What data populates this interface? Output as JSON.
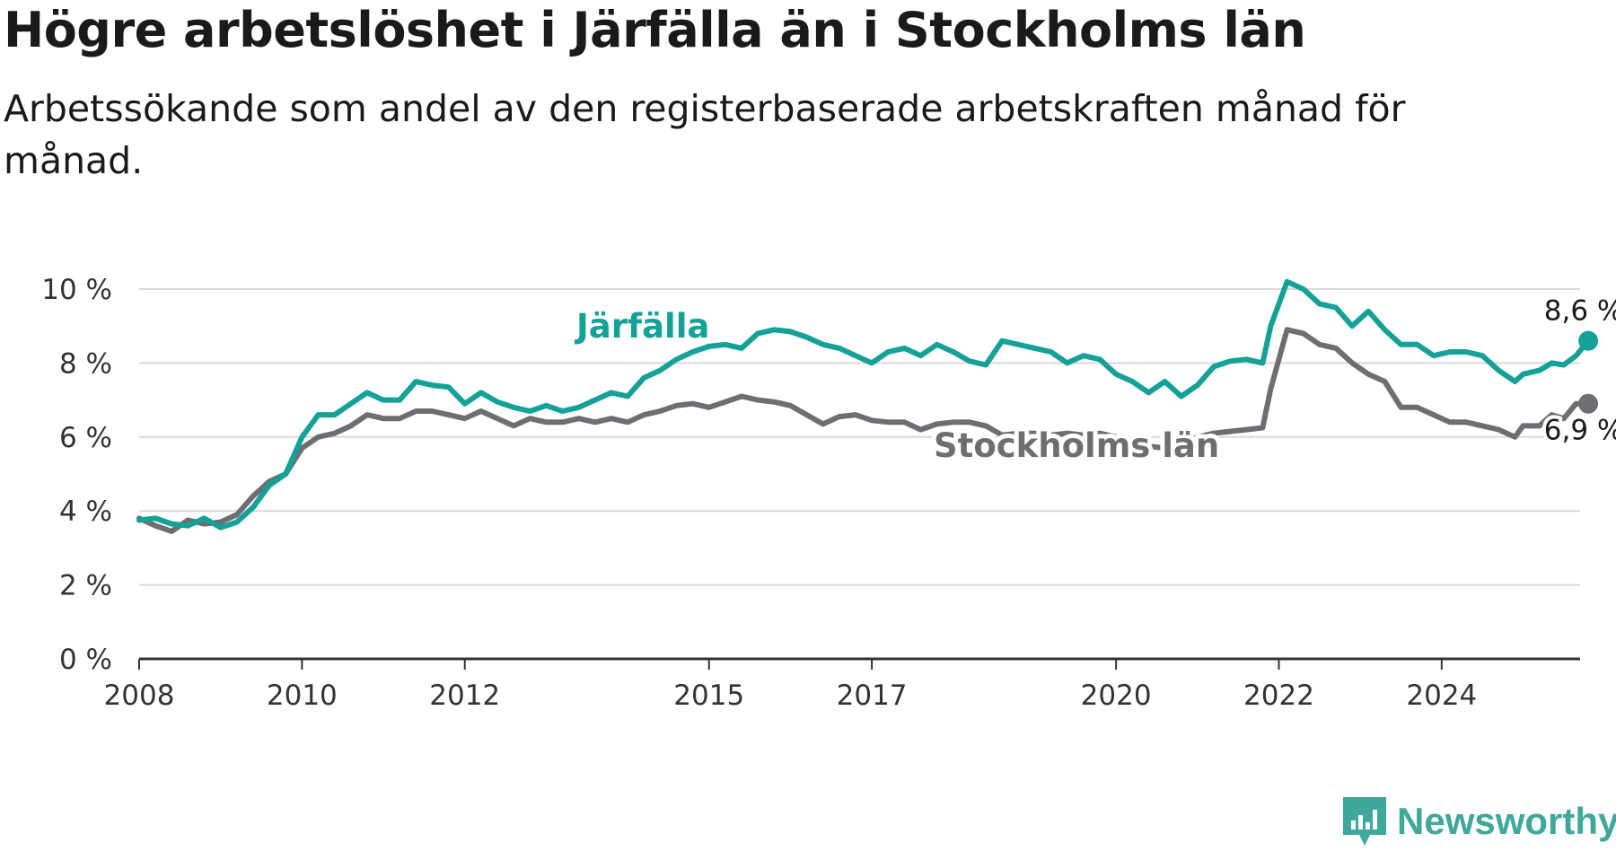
{
  "header": {
    "title": "Högre arbetslöshet i Järfälla än i Stockholms län",
    "subtitle": "Arbetssökande som andel av den registerbaserade arbetskraften månad för månad."
  },
  "brand": {
    "name": "Newsworthy",
    "color": "#3fa89a"
  },
  "chart_data": {
    "type": "line",
    "title": "Högre arbetslöshet i Järfälla än i Stockholms län",
    "subtitle": "Arbetssökande som andel av den registerbaserade arbetskraften månad för månad.",
    "ylim": [
      0,
      10
    ],
    "yticks": [
      0,
      2,
      4,
      6,
      8,
      10
    ],
    "ytick_labels": [
      "0 %",
      "2 %",
      "4 %",
      "6 %",
      "8 %",
      "10 %"
    ],
    "xlim": [
      2008,
      2025.7
    ],
    "xticks": [
      2008,
      2010,
      2012,
      2015,
      2017,
      2020,
      2022,
      2024
    ],
    "xtick_labels": [
      "2008",
      "2010",
      "2012",
      "2015",
      "2017",
      "2020",
      "2022",
      "2024"
    ],
    "grid": true,
    "series": [
      {
        "name": "Järfälla",
        "color": "#14a197",
        "end_label": "8,6 %",
        "points": [
          [
            2008.0,
            3.75
          ],
          [
            2008.2,
            3.8
          ],
          [
            2008.4,
            3.65
          ],
          [
            2008.6,
            3.6
          ],
          [
            2008.8,
            3.8
          ],
          [
            2009.0,
            3.55
          ],
          [
            2009.2,
            3.7
          ],
          [
            2009.4,
            4.1
          ],
          [
            2009.6,
            4.7
          ],
          [
            2009.8,
            5.0
          ],
          [
            2010.0,
            6.0
          ],
          [
            2010.2,
            6.6
          ],
          [
            2010.4,
            6.6
          ],
          [
            2010.6,
            6.9
          ],
          [
            2010.8,
            7.2
          ],
          [
            2011.0,
            7.0
          ],
          [
            2011.2,
            7.0
          ],
          [
            2011.4,
            7.5
          ],
          [
            2011.6,
            7.4
          ],
          [
            2011.8,
            7.35
          ],
          [
            2012.0,
            6.9
          ],
          [
            2012.2,
            7.2
          ],
          [
            2012.4,
            6.95
          ],
          [
            2012.6,
            6.8
          ],
          [
            2012.8,
            6.7
          ],
          [
            2013.0,
            6.85
          ],
          [
            2013.2,
            6.7
          ],
          [
            2013.4,
            6.8
          ],
          [
            2013.6,
            7.0
          ],
          [
            2013.8,
            7.2
          ],
          [
            2014.0,
            7.1
          ],
          [
            2014.2,
            7.6
          ],
          [
            2014.4,
            7.8
          ],
          [
            2014.6,
            8.1
          ],
          [
            2014.8,
            8.3
          ],
          [
            2015.0,
            8.45
          ],
          [
            2015.2,
            8.5
          ],
          [
            2015.4,
            8.4
          ],
          [
            2015.6,
            8.8
          ],
          [
            2015.8,
            8.9
          ],
          [
            2016.0,
            8.85
          ],
          [
            2016.2,
            8.7
          ],
          [
            2016.4,
            8.5
          ],
          [
            2016.6,
            8.4
          ],
          [
            2016.8,
            8.2
          ],
          [
            2017.0,
            8.0
          ],
          [
            2017.2,
            8.3
          ],
          [
            2017.4,
            8.4
          ],
          [
            2017.6,
            8.2
          ],
          [
            2017.8,
            8.5
          ],
          [
            2018.0,
            8.3
          ],
          [
            2018.2,
            8.05
          ],
          [
            2018.4,
            7.95
          ],
          [
            2018.6,
            8.6
          ],
          [
            2018.8,
            8.5
          ],
          [
            2019.0,
            8.4
          ],
          [
            2019.2,
            8.3
          ],
          [
            2019.4,
            8.0
          ],
          [
            2019.6,
            8.2
          ],
          [
            2019.8,
            8.1
          ],
          [
            2020.0,
            7.7
          ],
          [
            2020.2,
            7.5
          ],
          [
            2020.4,
            7.2
          ],
          [
            2020.6,
            7.5
          ],
          [
            2020.8,
            7.1
          ],
          [
            2021.0,
            7.4
          ],
          [
            2021.2,
            7.9
          ],
          [
            2021.4,
            8.05
          ],
          [
            2021.6,
            8.1
          ],
          [
            2021.8,
            8.0
          ],
          [
            2021.9,
            9.0
          ],
          [
            2022.1,
            10.2
          ],
          [
            2022.3,
            10.0
          ],
          [
            2022.5,
            9.6
          ],
          [
            2022.7,
            9.5
          ],
          [
            2022.9,
            9.0
          ],
          [
            2023.1,
            9.4
          ],
          [
            2023.3,
            8.9
          ],
          [
            2023.5,
            8.5
          ],
          [
            2023.7,
            8.5
          ],
          [
            2023.9,
            8.2
          ],
          [
            2024.1,
            8.3
          ],
          [
            2024.3,
            8.3
          ],
          [
            2024.5,
            8.2
          ],
          [
            2024.7,
            7.8
          ],
          [
            2024.9,
            7.5
          ],
          [
            2025.0,
            7.7
          ],
          [
            2025.2,
            7.8
          ],
          [
            2025.35,
            8.0
          ],
          [
            2025.5,
            7.95
          ],
          [
            2025.65,
            8.2
          ],
          [
            2025.8,
            8.6
          ]
        ]
      },
      {
        "name": "Stockholms län",
        "color": "#6e6d72",
        "end_label": "6,9 %",
        "points": [
          [
            2008.0,
            3.8
          ],
          [
            2008.2,
            3.6
          ],
          [
            2008.4,
            3.45
          ],
          [
            2008.6,
            3.75
          ],
          [
            2008.8,
            3.65
          ],
          [
            2009.0,
            3.7
          ],
          [
            2009.2,
            3.9
          ],
          [
            2009.4,
            4.4
          ],
          [
            2009.6,
            4.8
          ],
          [
            2009.8,
            5.0
          ],
          [
            2010.0,
            5.7
          ],
          [
            2010.2,
            6.0
          ],
          [
            2010.4,
            6.1
          ],
          [
            2010.6,
            6.3
          ],
          [
            2010.8,
            6.6
          ],
          [
            2011.0,
            6.5
          ],
          [
            2011.2,
            6.5
          ],
          [
            2011.4,
            6.7
          ],
          [
            2011.6,
            6.7
          ],
          [
            2011.8,
            6.6
          ],
          [
            2012.0,
            6.5
          ],
          [
            2012.2,
            6.7
          ],
          [
            2012.4,
            6.5
          ],
          [
            2012.6,
            6.3
          ],
          [
            2012.8,
            6.5
          ],
          [
            2013.0,
            6.4
          ],
          [
            2013.2,
            6.4
          ],
          [
            2013.4,
            6.5
          ],
          [
            2013.6,
            6.4
          ],
          [
            2013.8,
            6.5
          ],
          [
            2014.0,
            6.4
          ],
          [
            2014.2,
            6.6
          ],
          [
            2014.4,
            6.7
          ],
          [
            2014.6,
            6.85
          ],
          [
            2014.8,
            6.9
          ],
          [
            2015.0,
            6.8
          ],
          [
            2015.2,
            6.95
          ],
          [
            2015.4,
            7.1
          ],
          [
            2015.6,
            7.0
          ],
          [
            2015.8,
            6.95
          ],
          [
            2016.0,
            6.85
          ],
          [
            2016.2,
            6.6
          ],
          [
            2016.4,
            6.35
          ],
          [
            2016.6,
            6.55
          ],
          [
            2016.8,
            6.6
          ],
          [
            2017.0,
            6.45
          ],
          [
            2017.2,
            6.4
          ],
          [
            2017.4,
            6.4
          ],
          [
            2017.6,
            6.2
          ],
          [
            2017.8,
            6.35
          ],
          [
            2018.0,
            6.4
          ],
          [
            2018.2,
            6.4
          ],
          [
            2018.4,
            6.3
          ],
          [
            2018.6,
            6.05
          ],
          [
            2018.8,
            6.1
          ],
          [
            2019.0,
            6.1
          ],
          [
            2019.2,
            6.05
          ],
          [
            2019.4,
            6.1
          ],
          [
            2019.6,
            6.05
          ],
          [
            2019.8,
            6.1
          ],
          [
            2020.0,
            6.0
          ],
          [
            2020.2,
            5.9
          ],
          [
            2020.4,
            5.75
          ],
          [
            2020.6,
            5.7
          ],
          [
            2020.8,
            5.85
          ],
          [
            2021.0,
            6.0
          ],
          [
            2021.2,
            6.1
          ],
          [
            2021.4,
            6.15
          ],
          [
            2021.6,
            6.2
          ],
          [
            2021.8,
            6.25
          ],
          [
            2021.9,
            7.3
          ],
          [
            2022.1,
            8.9
          ],
          [
            2022.3,
            8.8
          ],
          [
            2022.5,
            8.5
          ],
          [
            2022.7,
            8.4
          ],
          [
            2022.9,
            8.0
          ],
          [
            2023.1,
            7.7
          ],
          [
            2023.3,
            7.5
          ],
          [
            2023.5,
            6.8
          ],
          [
            2023.7,
            6.8
          ],
          [
            2023.9,
            6.6
          ],
          [
            2024.1,
            6.4
          ],
          [
            2024.3,
            6.4
          ],
          [
            2024.5,
            6.3
          ],
          [
            2024.7,
            6.2
          ],
          [
            2024.9,
            6.0
          ],
          [
            2025.0,
            6.3
          ],
          [
            2025.2,
            6.3
          ],
          [
            2025.35,
            6.6
          ],
          [
            2025.5,
            6.5
          ],
          [
            2025.65,
            6.9
          ],
          [
            2025.8,
            6.9
          ]
        ]
      }
    ]
  }
}
